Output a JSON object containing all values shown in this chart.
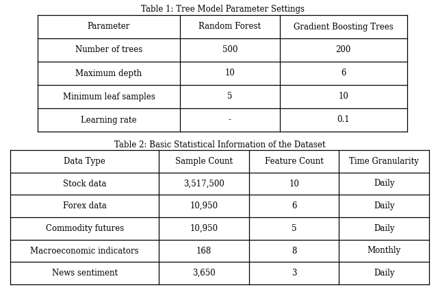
{
  "table1_title": "Table 1: Tree Model Parameter Settings",
  "table1_headers": [
    "Parameter",
    "Random Forest",
    "Gradient Boosting Trees"
  ],
  "table1_rows": [
    [
      "Number of trees",
      "500",
      "200"
    ],
    [
      "Maximum depth",
      "10",
      "6"
    ],
    [
      "Minimum leaf samples",
      "5",
      "10"
    ],
    [
      "Learning rate",
      "-",
      "0.1"
    ]
  ],
  "table2_title": "Table 2: Basic Statistical Information of the Dataset",
  "table2_headers": [
    "Data Type",
    "Sample Count",
    "Feature Count",
    "Time Granularity"
  ],
  "table2_rows": [
    [
      "Stock data",
      "3,517,500",
      "10",
      "Daily"
    ],
    [
      "Forex data",
      "10,950",
      "6",
      "Daily"
    ],
    [
      "Commodity futures",
      "10,950",
      "5",
      "Daily"
    ],
    [
      "Macroeconomic indicators",
      "168",
      "8",
      "Monthly"
    ],
    [
      "News sentiment",
      "3,650",
      "3",
      "Daily"
    ]
  ],
  "bg_color": "#ffffff",
  "text_color": "#000000",
  "line_color": "#000000",
  "title_fontsize": 8.5,
  "cell_fontsize": 8.5,
  "fig_width": 6.4,
  "fig_height": 4.29
}
